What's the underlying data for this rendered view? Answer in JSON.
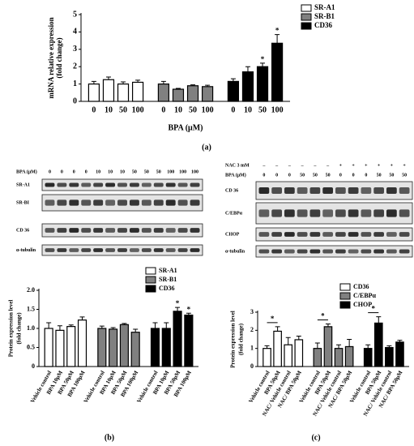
{
  "chart_data": [
    {
      "type": "bar",
      "ylabel": [
        "mRNA relative expression",
        "(fold change)"
      ],
      "xlabel": "BPA (μM)",
      "categories": [
        "0",
        "10",
        "50",
        "100"
      ],
      "series": [
        {
          "name": "SR-A1",
          "color": "#ffffff",
          "values": [
            1.0,
            1.25,
            1.0,
            1.1
          ],
          "errors": [
            0.15,
            0.15,
            0.12,
            0.12
          ]
        },
        {
          "name": "SR-B1",
          "color": "#808080",
          "values": [
            1.0,
            0.7,
            0.9,
            0.85
          ],
          "errors": [
            0.15,
            0.05,
            0.05,
            0.08
          ]
        },
        {
          "name": "CD36",
          "color": "#000000",
          "values": [
            1.15,
            1.7,
            2.0,
            3.35
          ],
          "errors": [
            0.15,
            0.3,
            0.2,
            0.5
          ]
        }
      ],
      "annotations": [
        {
          "text": "*",
          "series": 2,
          "index": 2
        },
        {
          "text": "*",
          "series": 2,
          "index": 3
        }
      ],
      "ylim": [
        0,
        5
      ],
      "yticks": [
        0,
        1,
        2,
        3,
        4,
        5
      ]
    },
    {
      "type": "bar",
      "ylabel": [
        "Protein expression level",
        "(fold change)"
      ],
      "categories": [
        "Vehicle control",
        "BPA 10μM",
        "BPA 50μM",
        "BPA 100μM"
      ],
      "series": [
        {
          "name": "SR-A1",
          "color": "#ffffff",
          "values": [
            1.0,
            0.95,
            1.05,
            1.22
          ],
          "errors": [
            0.15,
            0.12,
            0.04,
            0.08
          ]
        },
        {
          "name": "SR-B1",
          "color": "#808080",
          "values": [
            1.0,
            0.98,
            1.1,
            0.9
          ],
          "errors": [
            0.06,
            0.04,
            0.03,
            0.08
          ]
        },
        {
          "name": "CD36",
          "color": "#000000",
          "values": [
            1.0,
            1.0,
            1.45,
            1.35
          ],
          "errors": [
            0.15,
            0.15,
            0.1,
            0.05
          ]
        }
      ],
      "annotations": [
        {
          "text": "*",
          "series": 2,
          "index": 2
        },
        {
          "text": "*",
          "series": 2,
          "index": 3
        }
      ],
      "ylim": [
        0,
        2
      ],
      "yticks": [
        0,
        0.5,
        {
          "value": 1,
          "label": "1.0"
        },
        1.5,
        {
          "value": 2,
          "label": "2.0"
        }
      ]
    },
    {
      "type": "bar",
      "ylabel": [
        "Protein expression level",
        "(fold change)"
      ],
      "categories": [
        "Vehicle control",
        "BPA 50μM",
        "NAC/ Vehicle control",
        "NAC/ BPA 50μM"
      ],
      "series": [
        {
          "name": "CD36",
          "color": "#ffffff",
          "values": [
            1.0,
            1.95,
            1.2,
            1.48
          ],
          "errors": [
            0.15,
            0.25,
            0.4,
            0.2
          ]
        },
        {
          "name": "C/EBPα",
          "color": "#808080",
          "values": [
            1.0,
            2.2,
            1.0,
            1.1
          ],
          "errors": [
            0.3,
            0.15,
            0.2,
            0.4
          ]
        },
        {
          "name": "CHOP",
          "color": "#000000",
          "values": [
            1.0,
            2.4,
            1.05,
            1.35
          ],
          "errors": [
            0.2,
            0.35,
            0.1,
            0.1
          ]
        }
      ],
      "brackets": [
        {
          "text": "*",
          "series": 0,
          "from": 0,
          "to": 1
        },
        {
          "text": "*",
          "series": 1,
          "from": 0,
          "to": 1
        },
        {
          "text": "*",
          "series": 2,
          "from": 0,
          "to": 1
        }
      ],
      "ylim": [
        0,
        3
      ],
      "yticks": [
        0,
        1,
        2,
        3
      ]
    }
  ],
  "blots": [
    {
      "header": [
        {
          "label": "BPA (μM)",
          "lanes": [
            "0",
            "0",
            "0",
            "0",
            "10",
            "10",
            "10",
            "50",
            "50",
            "50",
            "100",
            "100",
            "100"
          ]
        }
      ],
      "rows": [
        "SR-A1",
        "SR-BI",
        "CD 36",
        "α-tubulin"
      ]
    },
    {
      "header": [
        {
          "label": "NAC 3 mM",
          "lanes": [
            "–",
            "–",
            "–",
            "–",
            "–",
            "–",
            "+",
            "+",
            "+",
            "+",
            "+",
            "+"
          ]
        },
        {
          "label": "BPA (μM)",
          "lanes": [
            "0",
            "0",
            "0",
            "50",
            "50",
            "50",
            "0",
            "0",
            "0",
            "50",
            "50",
            "50"
          ]
        }
      ],
      "rows": [
        "CD 36",
        "C/EBPα",
        "CHOP",
        "α-tubulin"
      ]
    }
  ],
  "panel_labels": [
    "(a)",
    "(b)",
    "(c)"
  ]
}
